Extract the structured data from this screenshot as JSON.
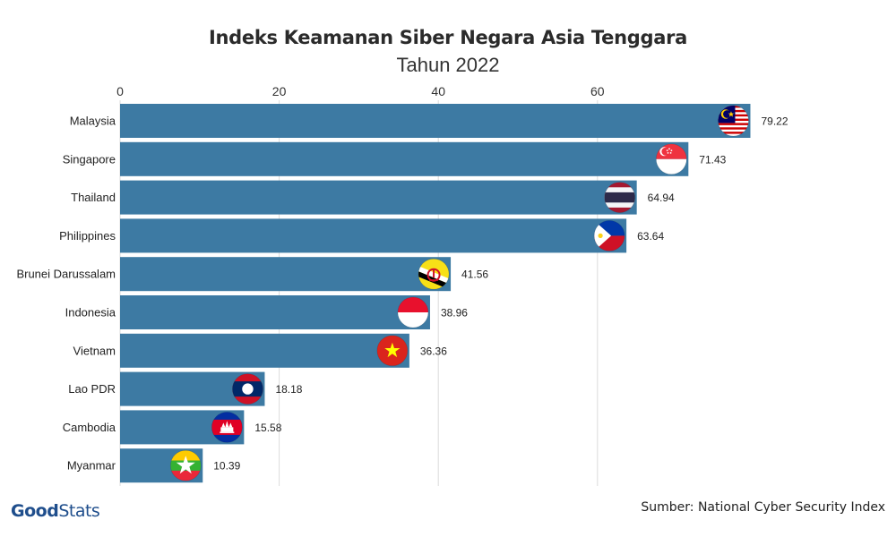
{
  "brand": {
    "name_bold": "Good",
    "name_light": "Stats"
  },
  "source": "Sumber: National Cyber Security Index",
  "chart_data": {
    "type": "bar",
    "orientation": "horizontal",
    "title": "Indeks Keamanan Siber Negara Asia Tenggara",
    "subtitle": "Tahun 2022",
    "xlim": [
      0,
      79.22
    ],
    "xticks": [
      0,
      20,
      40,
      60
    ],
    "grid": true,
    "bar_color": "#3d7aa3",
    "categories": [
      "Malaysia",
      "Singapore",
      "Thailand",
      "Philippines",
      "Brunei Darussalam",
      "Indonesia",
      "Vietnam",
      "Lao PDR",
      "Cambodia",
      "Myanmar"
    ],
    "values": [
      79.22,
      71.43,
      64.94,
      63.64,
      41.56,
      38.96,
      36.36,
      18.18,
      15.58,
      10.39
    ],
    "value_labels": [
      "79.22",
      "71.43",
      "64.94",
      "63.64",
      "41.56",
      "38.96",
      "36.36",
      "18.18",
      "15.58",
      "10.39"
    ],
    "flag_icons": [
      "malaysia-flag-icon",
      "singapore-flag-icon",
      "thailand-flag-icon",
      "philippines-flag-icon",
      "brunei-flag-icon",
      "indonesia-flag-icon",
      "vietnam-flag-icon",
      "laos-flag-icon",
      "cambodia-flag-icon",
      "myanmar-flag-icon"
    ]
  }
}
